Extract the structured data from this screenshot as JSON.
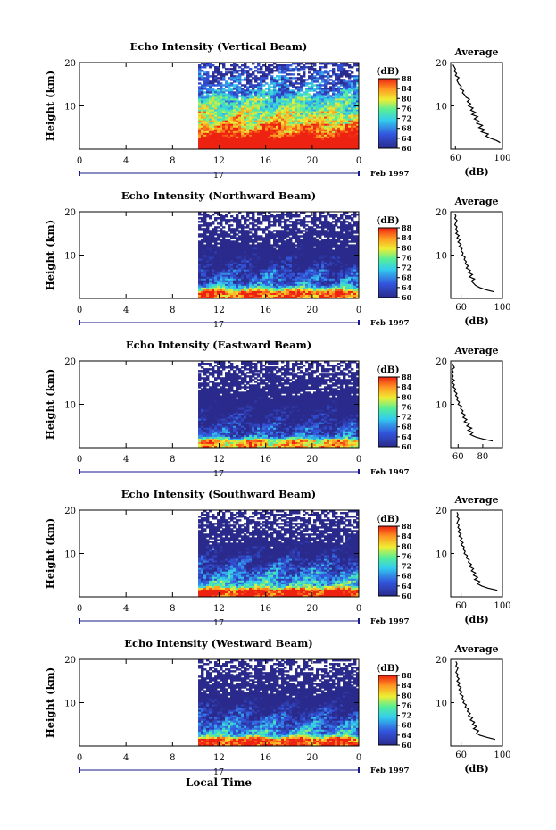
{
  "chart_data": [
    {
      "type": "heatmap",
      "title": "Echo Intensity (Vertical Beam)",
      "ylabel": "Height (km)",
      "xticks": [
        "0",
        "4",
        "8",
        "12",
        "16",
        "20",
        "0"
      ],
      "yticks": [
        "10",
        "20"
      ],
      "ylim": [
        0,
        20
      ],
      "xlim": [
        0,
        24
      ],
      "date_label": "17",
      "date_suffix": "Feb 1997",
      "data_start_hour": 10.2,
      "colorbar": {
        "unit": "(dB)",
        "ticks": [
          "60",
          "64",
          "68",
          "72",
          "76",
          "80",
          "84",
          "88"
        ],
        "range": [
          60,
          88
        ]
      },
      "profile": {
        "title": "Average",
        "xlabel": "(dB)",
        "xticks": [
          "60",
          "100"
        ],
        "xlim": [
          56,
          100
        ],
        "yticks": [
          "10",
          "20"
        ],
        "ylim": [
          0,
          20
        ],
        "heights": [
          1.5,
          2,
          2.5,
          3,
          3.5,
          4,
          4.5,
          5,
          5.5,
          6,
          6.5,
          7,
          7.5,
          8,
          8.5,
          9,
          9.5,
          10,
          10.5,
          11,
          11.5,
          12,
          12.5,
          13,
          13.5,
          14,
          14.5,
          15,
          15.5,
          16,
          16.5,
          17,
          17.5,
          18,
          18.5,
          19,
          19.5
        ],
        "values": [
          98,
          95,
          90,
          86,
          88,
          82,
          85,
          80,
          83,
          78,
          80,
          76,
          79,
          74,
          77,
          73,
          75,
          71,
          73,
          70,
          72,
          69,
          68,
          66,
          67,
          64,
          65,
          63,
          62,
          61,
          63,
          60,
          61,
          59,
          60,
          59,
          58
        ]
      }
    },
    {
      "type": "heatmap",
      "title": "Echo Intensity (Northward Beam)",
      "ylabel": "Height (km)",
      "xticks": [
        "0",
        "4",
        "8",
        "12",
        "16",
        "20",
        "0"
      ],
      "yticks": [
        "10",
        "20"
      ],
      "ylim": [
        0,
        20
      ],
      "xlim": [
        0,
        24
      ],
      "date_label": "17",
      "date_suffix": "Feb 1997",
      "data_start_hour": 10.2,
      "colorbar": {
        "unit": "(dB)",
        "ticks": [
          "60",
          "64",
          "68",
          "72",
          "76",
          "80",
          "84",
          "88"
        ],
        "range": [
          60,
          88
        ]
      },
      "profile": {
        "title": "Average",
        "xlabel": "(dB)",
        "xticks": [
          "60",
          "100"
        ],
        "xlim": [
          50,
          100
        ],
        "yticks": [
          "10",
          "20"
        ],
        "ylim": [
          0,
          20
        ],
        "heights": [
          1.5,
          2,
          2.5,
          3,
          3.5,
          4,
          4.5,
          5,
          5.5,
          6,
          6.5,
          7,
          7.5,
          8,
          8.5,
          9,
          9.5,
          10,
          10.5,
          11,
          11.5,
          12,
          12.5,
          13,
          13.5,
          14,
          14.5,
          15,
          15.5,
          16,
          16.5,
          17,
          17.5,
          18,
          18.5,
          19,
          19.5
        ],
        "values": [
          92,
          84,
          78,
          74,
          72,
          70,
          73,
          68,
          71,
          67,
          69,
          65,
          67,
          64,
          65,
          63,
          64,
          61,
          62,
          60,
          61,
          58,
          60,
          57,
          59,
          56,
          58,
          55,
          57,
          55,
          56,
          54,
          55,
          56,
          54,
          55,
          54
        ]
      }
    },
    {
      "type": "heatmap",
      "title": "Echo Intensity (Eastward Beam)",
      "ylabel": "Height (km)",
      "xticks": [
        "0",
        "4",
        "8",
        "12",
        "16",
        "20",
        "0"
      ],
      "yticks": [
        "10",
        "20"
      ],
      "ylim": [
        0,
        20
      ],
      "xlim": [
        0,
        24
      ],
      "date_label": "17",
      "date_suffix": "Feb 1997",
      "data_start_hour": 10.2,
      "colorbar": {
        "unit": "(dB)",
        "ticks": [
          "60",
          "64",
          "68",
          "72",
          "76",
          "80",
          "84",
          "88"
        ],
        "range": [
          60,
          88
        ]
      },
      "profile": {
        "title": "Average",
        "xlabel": "",
        "xticks": [
          "60",
          "80"
        ],
        "xlim": [
          54,
          96
        ],
        "yticks": [
          "10",
          "20"
        ],
        "ylim": [
          0,
          20
        ],
        "heights": [
          1.5,
          2,
          2.5,
          3,
          3.5,
          4,
          4.5,
          5,
          5.5,
          6,
          6.5,
          7,
          7.5,
          8,
          8.5,
          9,
          9.5,
          10,
          10.5,
          11,
          11.5,
          12,
          12.5,
          13,
          13.5,
          14,
          14.5,
          15,
          15.5,
          16,
          16.5,
          17,
          17.5,
          18,
          18.5,
          19,
          19.5
        ],
        "values": [
          88,
          80,
          74,
          70,
          72,
          68,
          71,
          67,
          69,
          65,
          67,
          64,
          66,
          63,
          64,
          62,
          63,
          60,
          61,
          59,
          60,
          58,
          59,
          57,
          58,
          56,
          57,
          55,
          57,
          55,
          56,
          55,
          56,
          55,
          57,
          56,
          55
        ]
      }
    },
    {
      "type": "heatmap",
      "title": "Echo Intensity (Southward Beam)",
      "ylabel": "Height (km)",
      "xticks": [
        "0",
        "4",
        "8",
        "12",
        "16",
        "20",
        "0"
      ],
      "yticks": [
        "10",
        "20"
      ],
      "ylim": [
        0,
        20
      ],
      "xlim": [
        0,
        24
      ],
      "date_label": "17",
      "date_suffix": "Feb 1997",
      "data_start_hour": 10.2,
      "colorbar": {
        "unit": "(dB)",
        "ticks": [
          "60",
          "64",
          "68",
          "72",
          "76",
          "80",
          "84",
          "88"
        ],
        "range": [
          60,
          88
        ]
      },
      "profile": {
        "title": "Average",
        "xlabel": "(dB)",
        "xticks": [
          "60",
          "100"
        ],
        "xlim": [
          50,
          100
        ],
        "yticks": [
          "10",
          "20"
        ],
        "ylim": [
          0,
          20
        ],
        "heights": [
          1.5,
          2,
          2.5,
          3,
          3.5,
          4,
          4.5,
          5,
          5.5,
          6,
          6.5,
          7,
          7.5,
          8,
          8.5,
          9,
          9.5,
          10,
          10.5,
          11,
          11.5,
          12,
          12.5,
          13,
          13.5,
          14,
          14.5,
          15,
          15.5,
          16,
          16.5,
          17,
          17.5,
          18,
          18.5,
          19,
          19.5
        ],
        "values": [
          95,
          86,
          80,
          76,
          78,
          73,
          76,
          72,
          74,
          70,
          72,
          68,
          70,
          67,
          68,
          65,
          66,
          63,
          64,
          62,
          63,
          60,
          62,
          59,
          61,
          58,
          60,
          57,
          59,
          57,
          58,
          56,
          57,
          58,
          56,
          57,
          56
        ]
      }
    },
    {
      "type": "heatmap",
      "title": "Echo Intensity (Westward Beam)",
      "ylabel": "Height (km)",
      "xticks": [
        "0",
        "4",
        "8",
        "12",
        "16",
        "20",
        "0"
      ],
      "yticks": [
        "10",
        "20"
      ],
      "ylim": [
        0,
        20
      ],
      "xlim": [
        0,
        24
      ],
      "date_label": "17",
      "date_suffix": "Feb 1997",
      "data_start_hour": 10.2,
      "colorbar": {
        "unit": "(dB)",
        "ticks": [
          "60",
          "64",
          "68",
          "72",
          "76",
          "80",
          "84",
          "88"
        ],
        "range": [
          60,
          88
        ]
      },
      "profile": {
        "title": "Average",
        "xlabel": "(dB)",
        "xticks": [
          "60",
          "100"
        ],
        "xlim": [
          50,
          100
        ],
        "yticks": [
          "10",
          "20"
        ],
        "ylim": [
          0,
          20
        ],
        "heights": [
          1.5,
          2,
          2.5,
          3,
          3.5,
          4,
          4.5,
          5,
          5.5,
          6,
          6.5,
          7,
          7.5,
          8,
          8.5,
          9,
          9.5,
          10,
          10.5,
          11,
          11.5,
          12,
          12.5,
          13,
          13.5,
          14,
          14.5,
          15,
          15.5,
          16,
          16.5,
          17,
          17.5,
          18,
          18.5,
          19,
          19.5
        ],
        "values": [
          93,
          85,
          78,
          75,
          77,
          72,
          75,
          71,
          73,
          69,
          71,
          67,
          69,
          66,
          67,
          64,
          65,
          62,
          63,
          61,
          62,
          59,
          61,
          58,
          60,
          57,
          59,
          56,
          58,
          56,
          57,
          55,
          56,
          57,
          55,
          56,
          55
        ]
      }
    }
  ],
  "footer": {
    "xlabel": "Local Time"
  },
  "colors": {
    "low": "#2a2a8c",
    "mid": "#33ccee",
    "high": "#ee2211",
    "axis": "#000000",
    "date_axis": "#1a1a8a"
  }
}
